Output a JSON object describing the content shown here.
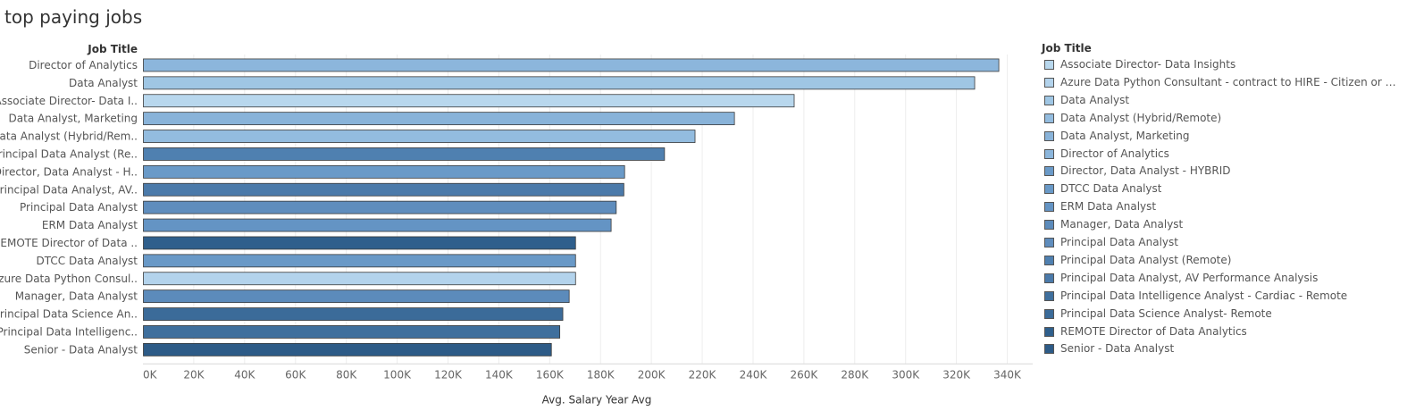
{
  "title": "top paying jobs",
  "chart_data": {
    "type": "bar",
    "orientation": "horizontal",
    "row_header": "Job Title",
    "xlabel": "Avg. Salary Year Avg",
    "xlim": [
      0,
      350000
    ],
    "x_ticks": [
      "0K",
      "20K",
      "40K",
      "60K",
      "80K",
      "100K",
      "120K",
      "140K",
      "160K",
      "180K",
      "200K",
      "220K",
      "240K",
      "260K",
      "280K",
      "300K",
      "320K",
      "340K"
    ],
    "x_tick_values": [
      0,
      20000,
      40000,
      60000,
      80000,
      100000,
      120000,
      140000,
      160000,
      180000,
      200000,
      220000,
      240000,
      260000,
      280000,
      300000,
      320000,
      340000
    ],
    "grid": "vertical",
    "categories": [
      "Director of Analytics",
      "Data Analyst",
      "Associate Director- Data I..",
      "Data Analyst, Marketing",
      "Data Analyst (Hybrid/Rem..",
      "Principal Data Analyst (Re..",
      "Director, Data Analyst - H..",
      "Principal Data Analyst, AV..",
      "Principal Data Analyst",
      "ERM Data Analyst",
      "REMOTE Director of Data ..",
      "DTCC Data Analyst",
      "Azure Data Python Consul..",
      "Manager, Data Analyst",
      "Principal Data Science An..",
      "Principal Data Intelligenc..",
      "Senior - Data Analyst"
    ],
    "values": [
      336500,
      327000,
      256000,
      232500,
      217000,
      205000,
      189300,
      189000,
      186000,
      184000,
      170000,
      170000,
      170000,
      167500,
      165000,
      163800,
      160500
    ],
    "bar_colors": [
      "#8cb6dc",
      "#9fc6e4",
      "#b8d7ed",
      "#89b3d9",
      "#93bcdf",
      "#4f80b0",
      "#6a9ac8",
      "#4b7aaa",
      "#5f8dbd",
      "#6494c4",
      "#2f5f8c",
      "#6999c7",
      "#b3d3ec",
      "#5c8bbb",
      "#3b6b99",
      "#3f6f9d",
      "#2d5b87"
    ],
    "legend": {
      "title": "Job Title",
      "placement": "right",
      "items": [
        {
          "label": "Associate Director- Data Insights",
          "color": "#b8d7ed"
        },
        {
          "label": "Azure Data Python Consultant - contract to HIRE - Citizen or Perm...",
          "color": "#b3d3ec"
        },
        {
          "label": "Data Analyst",
          "color": "#9fc6e4"
        },
        {
          "label": "Data Analyst (Hybrid/Remote)",
          "color": "#93bcdf"
        },
        {
          "label": "Data Analyst, Marketing",
          "color": "#89b3d9"
        },
        {
          "label": "Director of Analytics",
          "color": "#8cb6dc"
        },
        {
          "label": "Director, Data Analyst - HYBRID",
          "color": "#6a9ac8"
        },
        {
          "label": "DTCC Data Analyst",
          "color": "#6999c7"
        },
        {
          "label": "ERM Data Analyst",
          "color": "#6494c4"
        },
        {
          "label": "Manager, Data Analyst",
          "color": "#5c8bbb"
        },
        {
          "label": "Principal Data Analyst",
          "color": "#5f8dbd"
        },
        {
          "label": "Principal Data Analyst (Remote)",
          "color": "#4f80b0"
        },
        {
          "label": "Principal Data Analyst, AV Performance Analysis",
          "color": "#4b7aaa"
        },
        {
          "label": "Principal Data Intelligence Analyst - Cardiac - Remote",
          "color": "#3f6f9d"
        },
        {
          "label": "Principal Data Science Analyst- Remote",
          "color": "#3b6b99"
        },
        {
          "label": "REMOTE Director of Data Analytics",
          "color": "#2f5f8c"
        },
        {
          "label": "Senior - Data Analyst",
          "color": "#2d5b87"
        }
      ]
    }
  }
}
